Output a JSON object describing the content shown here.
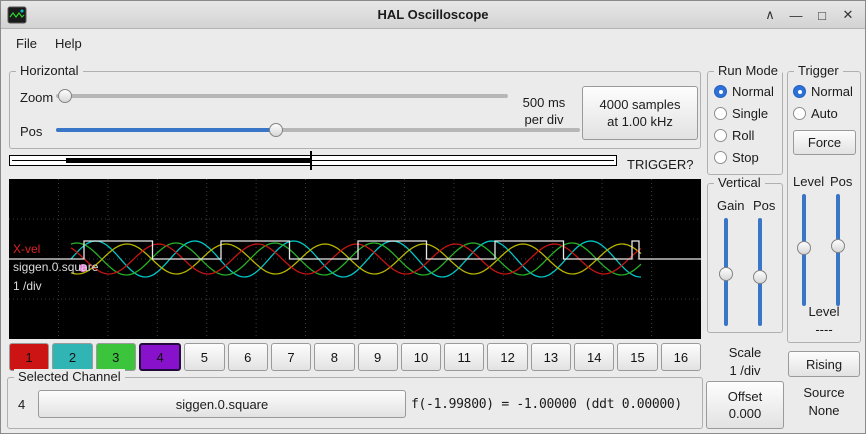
{
  "window": {
    "title": "HAL Oscilloscope",
    "controls": {
      "shade": "∧",
      "minimize": "—",
      "maximize": "□",
      "close": "✕"
    }
  },
  "menubar": {
    "items": [
      {
        "label": "File"
      },
      {
        "label": "Help"
      }
    ]
  },
  "horizontal": {
    "label": "Horizontal",
    "zoom_label": "Zoom",
    "pos_label": "Pos",
    "time_per_div": {
      "line1": "500 ms",
      "line2": "per div"
    },
    "samples_button": {
      "line1": "4000 samples",
      "line2": "at 1.00 kHz"
    },
    "trigger_status": "TRIGGER?"
  },
  "run_mode": {
    "label": "Run Mode",
    "options": [
      {
        "label": "Normal",
        "selected": true
      },
      {
        "label": "Single",
        "selected": false
      },
      {
        "label": "Roll",
        "selected": false
      },
      {
        "label": "Stop",
        "selected": false
      }
    ]
  },
  "trigger": {
    "label": "Trigger",
    "options": [
      {
        "label": "Normal",
        "selected": true
      },
      {
        "label": "Auto",
        "selected": false
      }
    ],
    "force_button": "Force",
    "level_slider_label": "Level",
    "pos_slider_label": "Pos",
    "level_label": "Level",
    "level_value": "----",
    "edge_button": "Rising",
    "source_label": "Source",
    "source_value": "None"
  },
  "vertical": {
    "label": "Vertical",
    "gain_label": "Gain",
    "pos_label": "Pos",
    "scale_label": "Scale",
    "scale_value": "1 /div",
    "offset_label": "Offset",
    "offset_value": "0.000"
  },
  "scope": {
    "overlays": {
      "channel1": "X-vel",
      "selected_name": "siggen.0.square",
      "scale": "1 /div"
    },
    "grid": {
      "cols": 14,
      "rows": 4
    },
    "marker_color": "#e878d8",
    "waves": [
      {
        "name": "sine-cyan",
        "type": "sine",
        "color": "#00c8c8",
        "amplitude": 18,
        "period": 99,
        "phase": 0.0
      },
      {
        "name": "sine-green",
        "type": "sine",
        "color": "#28b028",
        "amplitude": 16,
        "period": 99,
        "phase": 1.2
      },
      {
        "name": "sine-yellow",
        "type": "sine",
        "color": "#b8b400",
        "amplitude": 15,
        "period": 99,
        "phase": 4.3
      },
      {
        "name": "sine-red",
        "type": "sine",
        "color": "#c41414",
        "amplitude": 15,
        "period": 99,
        "phase": 2.3
      },
      {
        "name": "square-white",
        "type": "square",
        "color": "#e8e8e8",
        "high": 62,
        "low": 80,
        "period": 137
      }
    ]
  },
  "channels": {
    "selected": 4,
    "items": [
      {
        "label": "1",
        "color": "#cc1414"
      },
      {
        "label": "2",
        "color": "#30b4b4"
      },
      {
        "label": "3",
        "color": "#3cc43c"
      },
      {
        "label": "4",
        "color": "#8812cc"
      },
      {
        "label": "5"
      },
      {
        "label": "6"
      },
      {
        "label": "7"
      },
      {
        "label": "8"
      },
      {
        "label": "9"
      },
      {
        "label": "10"
      },
      {
        "label": "11"
      },
      {
        "label": "12"
      },
      {
        "label": "13"
      },
      {
        "label": "14"
      },
      {
        "label": "15"
      },
      {
        "label": "16"
      }
    ]
  },
  "selected_channel": {
    "label": "Selected Channel",
    "number": "4",
    "name_button": "siggen.0.square",
    "readout": "f(-1.99800) = -1.00000 (ddt  0.00000)"
  }
}
